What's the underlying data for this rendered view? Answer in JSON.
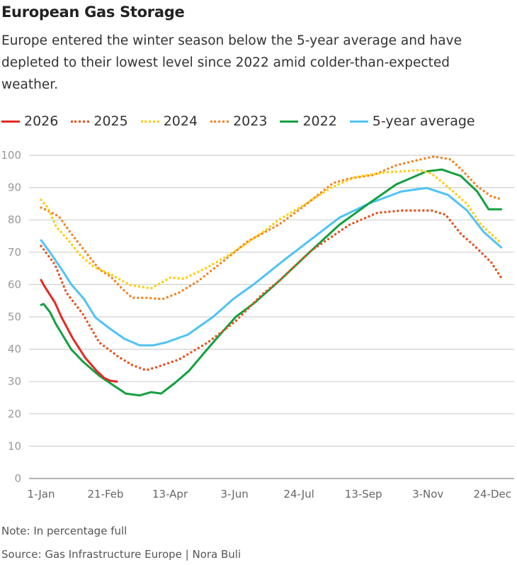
{
  "title": "European Gas Storage",
  "subtitle": "Europe entered the winter season below the 5-year average and have depleted to their lowest level since 2022 amid colder-than-expected weather.",
  "note": "Note: In percentage full",
  "source": "Source: Gas Infrastructure Europe | Nora Buli",
  "chart_data": {
    "type": "line",
    "title": "European Gas Storage",
    "xlabel": "",
    "ylabel": "",
    "ylim": [
      0,
      100
    ],
    "yticks": [
      "0",
      "10",
      "20",
      "30",
      "40",
      "50",
      "60",
      "70",
      "80",
      "90",
      "100"
    ],
    "xticks": [
      {
        "label": "1-Jan",
        "date": "01-01"
      },
      {
        "label": "21-Feb",
        "date": "02-21"
      },
      {
        "label": "13-Apr",
        "date": "04-13"
      },
      {
        "label": "3-Jun",
        "date": "06-03"
      },
      {
        "label": "24-Jul",
        "date": "07-24"
      },
      {
        "label": "13-Sep",
        "date": "09-13"
      },
      {
        "label": "3-Nov",
        "date": "11-03"
      },
      {
        "label": "24-Dec",
        "date": "12-24"
      }
    ],
    "grid": true,
    "legend": "top",
    "series": [
      {
        "name": "2026",
        "color": "#e32a22",
        "style": "solid",
        "points": [
          [
            "01-01",
            61.4
          ],
          [
            "01-03",
            59.9
          ],
          [
            "01-12",
            54.4
          ],
          [
            "01-17",
            50
          ],
          [
            "01-26",
            43.4
          ],
          [
            "02-05",
            37.3
          ],
          [
            "02-14",
            33.3
          ],
          [
            "02-20",
            31.1
          ],
          [
            "02-25",
            30.2
          ],
          [
            "03-02",
            30
          ]
        ]
      },
      {
        "name": "2025",
        "color": "#e8501c",
        "style": "dotted",
        "points": [
          [
            "01-01",
            71.9
          ],
          [
            "01-12",
            66.2
          ],
          [
            "01-21",
            57.5
          ],
          [
            "02-03",
            50.9
          ],
          [
            "02-16",
            42.1
          ],
          [
            "03-03",
            37.7
          ],
          [
            "03-14",
            35.1
          ],
          [
            "03-25",
            33.5
          ],
          [
            "04-02",
            34.4
          ],
          [
            "04-20",
            36.8
          ],
          [
            "05-13",
            42.1
          ],
          [
            "06-04",
            48.7
          ],
          [
            "06-25",
            57
          ],
          [
            "07-08",
            61
          ],
          [
            "08-03",
            70.6
          ],
          [
            "09-02",
            78.5
          ],
          [
            "09-24",
            82.2
          ],
          [
            "10-13",
            82.9
          ],
          [
            "11-06",
            82.9
          ],
          [
            "11-17",
            81.6
          ],
          [
            "11-29",
            75.7
          ],
          [
            "12-10",
            71.9
          ],
          [
            "12-23",
            66.9
          ],
          [
            "12-31",
            62.1
          ]
        ]
      },
      {
        "name": "2024",
        "color": "#ffcc00",
        "style": "dotted",
        "points": [
          [
            "01-01",
            86.2
          ],
          [
            "01-06",
            84
          ],
          [
            "01-13",
            77.9
          ],
          [
            "01-23",
            73.5
          ],
          [
            "02-01",
            69.1
          ],
          [
            "02-12",
            65.4
          ],
          [
            "02-25",
            63.2
          ],
          [
            "03-12",
            59.9
          ],
          [
            "03-29",
            58.8
          ],
          [
            "04-13",
            62.1
          ],
          [
            "04-24",
            61.8
          ],
          [
            "05-13",
            65.4
          ],
          [
            "06-01",
            69.7
          ],
          [
            "06-25",
            76.1
          ],
          [
            "07-08",
            80
          ],
          [
            "07-27",
            84.4
          ],
          [
            "08-18",
            89.9
          ],
          [
            "09-06",
            93.2
          ],
          [
            "09-30",
            94.7
          ],
          [
            "10-28",
            95.4
          ],
          [
            "11-06",
            94.3
          ],
          [
            "11-21",
            89.5
          ],
          [
            "12-04",
            84.9
          ],
          [
            "12-15",
            78.5
          ],
          [
            "12-31",
            72.8
          ]
        ]
      },
      {
        "name": "2023",
        "color": "#f58220",
        "style": "dotted",
        "points": [
          [
            "01-01",
            83.8
          ],
          [
            "01-04",
            83.3
          ],
          [
            "01-15",
            81.1
          ],
          [
            "01-25",
            75.7
          ],
          [
            "02-06",
            69.7
          ],
          [
            "02-16",
            64.7
          ],
          [
            "02-25",
            62.5
          ],
          [
            "03-06",
            58.8
          ],
          [
            "03-14",
            55.9
          ],
          [
            "03-25",
            55.9
          ],
          [
            "04-07",
            55.5
          ],
          [
            "04-20",
            57.5
          ],
          [
            "05-05",
            61
          ],
          [
            "05-26",
            67.5
          ],
          [
            "06-14",
            73.5
          ],
          [
            "07-08",
            78.5
          ],
          [
            "07-27",
            84
          ],
          [
            "08-20",
            91.4
          ],
          [
            "09-02",
            92.8
          ],
          [
            "09-21",
            93.9
          ],
          [
            "10-09",
            96.9
          ],
          [
            "10-28",
            98.7
          ],
          [
            "11-08",
            99.6
          ],
          [
            "11-21",
            98.7
          ],
          [
            "11-30",
            95.4
          ],
          [
            "12-12",
            90.4
          ],
          [
            "12-23",
            87.3
          ],
          [
            "12-31",
            86.4
          ]
        ]
      },
      {
        "name": "2022",
        "color": "#12a040",
        "style": "solid",
        "points": [
          [
            "01-01",
            53.7
          ],
          [
            "01-03",
            54
          ],
          [
            "01-08",
            51.5
          ],
          [
            "01-13",
            47.6
          ],
          [
            "01-25",
            39.9
          ],
          [
            "02-03",
            36.2
          ],
          [
            "02-16",
            31.8
          ],
          [
            "02-27",
            28.9
          ],
          [
            "03-09",
            26.3
          ],
          [
            "03-20",
            25.7
          ],
          [
            "03-29",
            26.7
          ],
          [
            "04-06",
            26.3
          ],
          [
            "04-17",
            29.6
          ],
          [
            "04-28",
            33.3
          ],
          [
            "05-09",
            38.4
          ],
          [
            "05-20",
            43.4
          ],
          [
            "06-04",
            50
          ],
          [
            "06-19",
            54.4
          ],
          [
            "07-08",
            61
          ],
          [
            "08-03",
            70.6
          ],
          [
            "08-25",
            78.5
          ],
          [
            "09-17",
            85
          ],
          [
            "10-09",
            91
          ],
          [
            "11-02",
            95
          ],
          [
            "11-14",
            95.6
          ],
          [
            "11-29",
            93.6
          ],
          [
            "12-12",
            88.8
          ],
          [
            "12-21",
            83.3
          ],
          [
            "12-31",
            83.3
          ]
        ]
      },
      {
        "name": "5-year average",
        "color": "#4fc3f7",
        "style": "solid",
        "points": [
          [
            "01-01",
            73.7
          ],
          [
            "01-08",
            70
          ],
          [
            "01-18",
            64.3
          ],
          [
            "01-25",
            60
          ],
          [
            "02-04",
            55.5
          ],
          [
            "02-13",
            49.8
          ],
          [
            "02-24",
            46.5
          ],
          [
            "03-08",
            43.2
          ],
          [
            "03-20",
            41.2
          ],
          [
            "03-31",
            41.2
          ],
          [
            "04-10",
            42.1
          ],
          [
            "04-27",
            44.5
          ],
          [
            "05-17",
            50
          ],
          [
            "06-02",
            55.5
          ],
          [
            "06-19",
            60.3
          ],
          [
            "07-12",
            67.5
          ],
          [
            "08-03",
            74.1
          ],
          [
            "08-25",
            80.7
          ],
          [
            "09-17",
            85
          ],
          [
            "10-13",
            88.8
          ],
          [
            "11-02",
            89.9
          ],
          [
            "11-19",
            87.7
          ],
          [
            "12-04",
            82.9
          ],
          [
            "12-17",
            76.3
          ],
          [
            "12-31",
            71.5
          ]
        ]
      }
    ]
  }
}
